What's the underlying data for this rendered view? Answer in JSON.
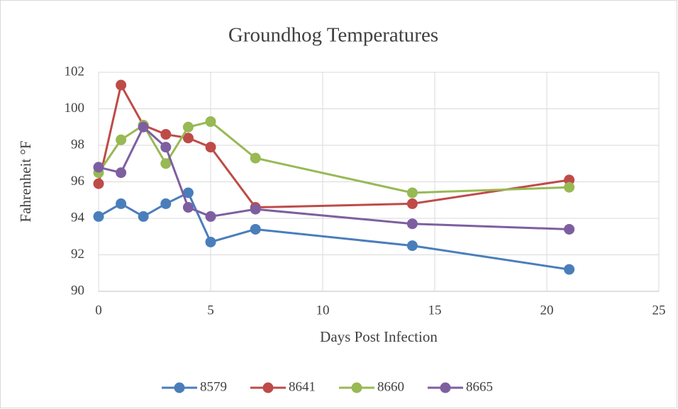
{
  "chart_data": {
    "type": "line",
    "title": "Groundhog Temperatures",
    "x_label": "Days Post Infection",
    "y_label": "Fahrenheit °F",
    "x": [
      0,
      1,
      2,
      3,
      4,
      5,
      7,
      14,
      21
    ],
    "series": [
      {
        "name": "8579",
        "color": "#4a7ebb",
        "values": [
          94.1,
          94.8,
          94.1,
          94.8,
          95.4,
          92.7,
          93.4,
          92.5,
          91.2
        ]
      },
      {
        "name": "8641",
        "color": "#be4b48",
        "values": [
          95.9,
          101.3,
          99.1,
          98.6,
          98.4,
          97.9,
          94.6,
          94.8,
          96.1
        ]
      },
      {
        "name": "8660",
        "color": "#98b954",
        "values": [
          96.5,
          98.3,
          99.1,
          97.0,
          99.0,
          99.3,
          97.3,
          95.4,
          95.7
        ]
      },
      {
        "name": "8665",
        "color": "#7d5fa0",
        "values": [
          96.8,
          96.5,
          99.0,
          97.9,
          94.6,
          94.1,
          94.5,
          93.7,
          93.4
        ]
      }
    ],
    "xlim": [
      0,
      25
    ],
    "xticks": [
      0,
      5,
      10,
      15,
      20,
      25
    ],
    "ylim": [
      90,
      102
    ],
    "yticks": [
      90,
      92,
      94,
      96,
      98,
      100,
      102
    ],
    "grid": true,
    "legend": "bottom"
  }
}
